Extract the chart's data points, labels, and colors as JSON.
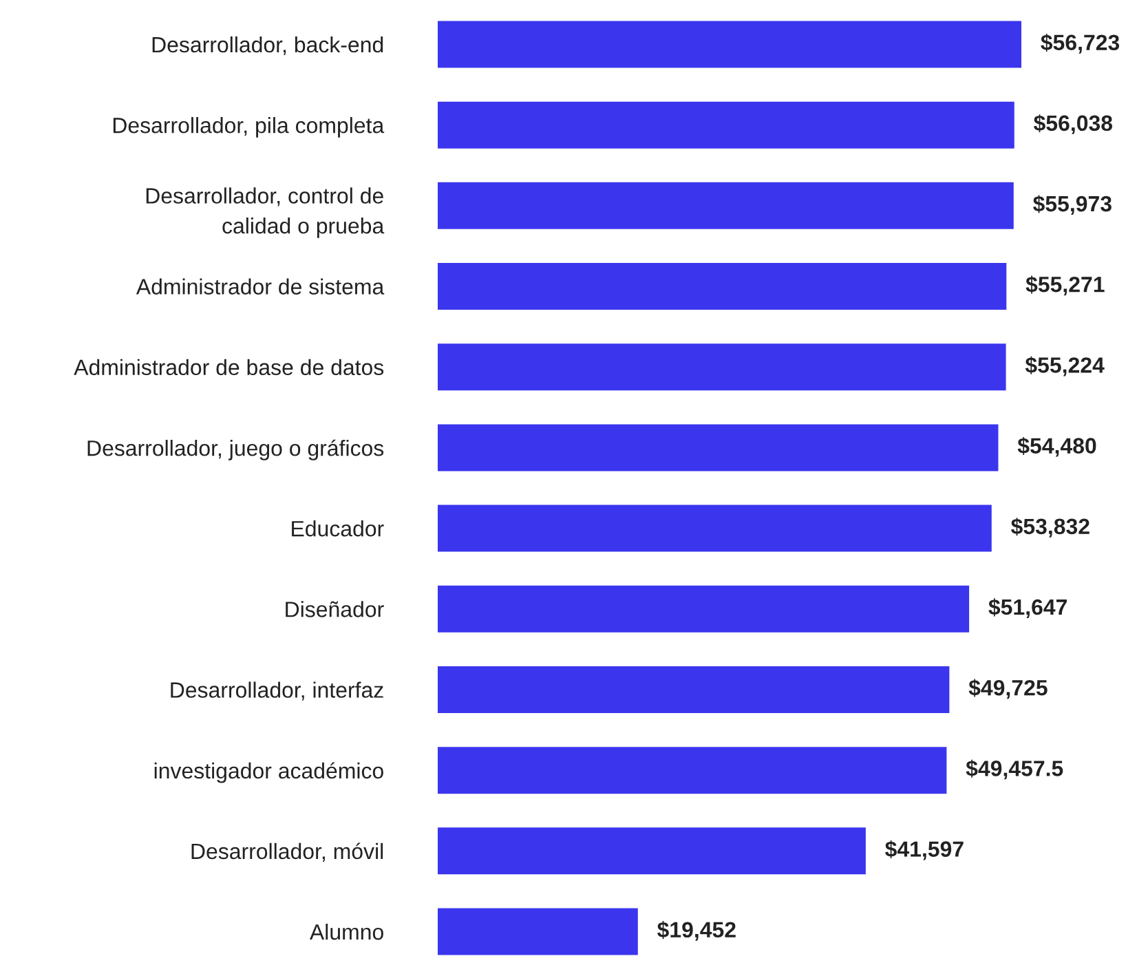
{
  "chart_data": {
    "type": "bar",
    "orientation": "horizontal",
    "categories": [
      "Desarrollador, back-end",
      "Desarrollador, pila completa",
      "Desarrollador, control de\ncalidad o prueba",
      "Administrador de sistema",
      "Administrador de base de datos",
      "Desarrollador, juego o gráficos",
      "Educador",
      "Diseñador",
      "Desarrollador, interfaz",
      "investigador académico",
      "Desarrollador, móvil",
      "Alumno"
    ],
    "values": [
      56723,
      56038,
      55973,
      55271,
      55224,
      54480,
      53832,
      51647,
      49725,
      49457.5,
      41597,
      19452
    ],
    "value_labels": [
      "$56,723",
      "$56,038",
      "$55,973",
      "$55,271",
      "$55,224",
      "$54,480",
      "$53,832",
      "$51,647",
      "$49,725",
      "$49,457.5",
      "$41,597",
      "$19,452"
    ],
    "color": "#3b35ee",
    "grid": false,
    "legend": false
  }
}
